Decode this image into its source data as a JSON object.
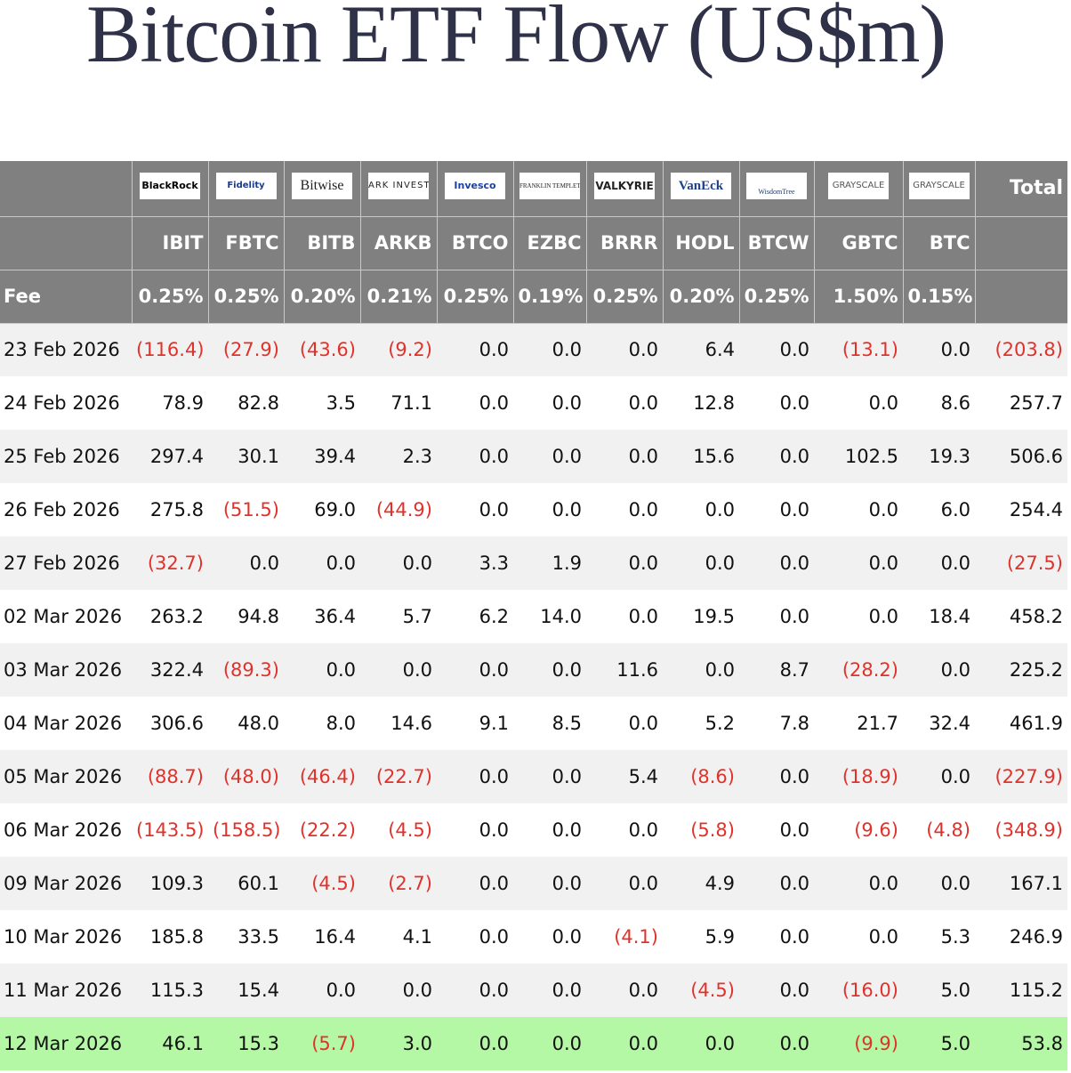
{
  "title": "Bitcoin ETF Flow (US$m)",
  "table": {
    "issuers": [
      "BlackRock",
      "Fidelity",
      "Bitwise",
      "ARK INVEST",
      "Invesco",
      "FRANKLIN TEMPLETON",
      "VALKYRIE",
      "VanEck",
      "WisdomTree",
      "GRAYSCALE",
      "GRAYSCALE"
    ],
    "total_header": "Total",
    "tickers": [
      "IBIT",
      "FBTC",
      "BITB",
      "ARKB",
      "BTCO",
      "EZBC",
      "BRRR",
      "HODL",
      "BTCW",
      "GBTC",
      "BTC"
    ],
    "fee_label": "Fee",
    "fees": [
      "0.25%",
      "0.25%",
      "0.20%",
      "0.21%",
      "0.25%",
      "0.19%",
      "0.25%",
      "0.20%",
      "0.25%",
      "1.50%",
      "0.15%"
    ],
    "rows": [
      [
        "23 Feb 2026",
        "(116.4)",
        "(27.9)",
        "(43.6)",
        "(9.2)",
        "0.0",
        "0.0",
        "0.0",
        "6.4",
        "0.0",
        "(13.1)",
        "0.0",
        "(203.8)"
      ],
      [
        "24 Feb 2026",
        "78.9",
        "82.8",
        "3.5",
        "71.1",
        "0.0",
        "0.0",
        "0.0",
        "12.8",
        "0.0",
        "0.0",
        "8.6",
        "257.7"
      ],
      [
        "25 Feb 2026",
        "297.4",
        "30.1",
        "39.4",
        "2.3",
        "0.0",
        "0.0",
        "0.0",
        "15.6",
        "0.0",
        "102.5",
        "19.3",
        "506.6"
      ],
      [
        "26 Feb 2026",
        "275.8",
        "(51.5)",
        "69.0",
        "(44.9)",
        "0.0",
        "0.0",
        "0.0",
        "0.0",
        "0.0",
        "0.0",
        "6.0",
        "254.4"
      ],
      [
        "27 Feb 2026",
        "(32.7)",
        "0.0",
        "0.0",
        "0.0",
        "3.3",
        "1.9",
        "0.0",
        "0.0",
        "0.0",
        "0.0",
        "0.0",
        "(27.5)"
      ],
      [
        "02 Mar 2026",
        "263.2",
        "94.8",
        "36.4",
        "5.7",
        "6.2",
        "14.0",
        "0.0",
        "19.5",
        "0.0",
        "0.0",
        "18.4",
        "458.2"
      ],
      [
        "03 Mar 2026",
        "322.4",
        "(89.3)",
        "0.0",
        "0.0",
        "0.0",
        "0.0",
        "11.6",
        "0.0",
        "8.7",
        "(28.2)",
        "0.0",
        "225.2"
      ],
      [
        "04 Mar 2026",
        "306.6",
        "48.0",
        "8.0",
        "14.6",
        "9.1",
        "8.5",
        "0.0",
        "5.2",
        "7.8",
        "21.7",
        "32.4",
        "461.9"
      ],
      [
        "05 Mar 2026",
        "(88.7)",
        "(48.0)",
        "(46.4)",
        "(22.7)",
        "0.0",
        "0.0",
        "5.4",
        "(8.6)",
        "0.0",
        "(18.9)",
        "0.0",
        "(227.9)"
      ],
      [
        "06 Mar 2026",
        "(143.5)",
        "(158.5)",
        "(22.2)",
        "(4.5)",
        "0.0",
        "0.0",
        "0.0",
        "(5.8)",
        "0.0",
        "(9.6)",
        "(4.8)",
        "(348.9)"
      ],
      [
        "09 Mar 2026",
        "109.3",
        "60.1",
        "(4.5)",
        "(2.7)",
        "0.0",
        "0.0",
        "0.0",
        "4.9",
        "0.0",
        "0.0",
        "0.0",
        "167.1"
      ],
      [
        "10 Mar 2026",
        "185.8",
        "33.5",
        "16.4",
        "4.1",
        "0.0",
        "0.0",
        "(4.1)",
        "5.9",
        "0.0",
        "0.0",
        "5.3",
        "246.9"
      ],
      [
        "11 Mar 2026",
        "115.3",
        "15.4",
        "0.0",
        "0.0",
        "0.0",
        "0.0",
        "0.0",
        "(4.5)",
        "0.0",
        "(16.0)",
        "5.0",
        "115.2"
      ],
      [
        "12 Mar 2026",
        "46.1",
        "15.3",
        "(5.7)",
        "3.0",
        "0.0",
        "0.0",
        "0.0",
        "0.0",
        "0.0",
        "(9.9)",
        "5.0",
        "53.8"
      ]
    ]
  }
}
